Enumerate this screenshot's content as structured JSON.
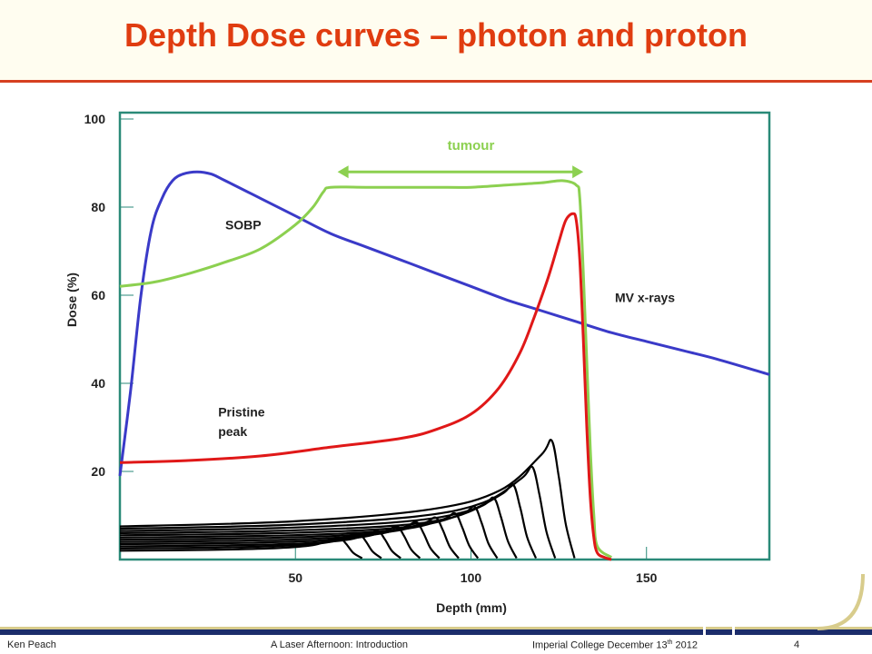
{
  "slide": {
    "title": "Depth Dose curves – photon and proton",
    "footer": {
      "author": "Ken Peach",
      "talk": "A Laser Afternoon: Introduction",
      "venue_prefix": "Imperial College December 13",
      "venue_sup": "th",
      "venue_suffix": " 2012",
      "page": "4"
    }
  },
  "colors": {
    "title": "#e03c10",
    "title_rule": "#d64020",
    "axes": "#2a8a78",
    "mv_xrays": "#3a3ac8",
    "sobp": "#8cd050",
    "pristine_peak": "#e01818",
    "pristine_family": "#000000",
    "tumour_arrow": "#8cd050",
    "footer_bar": "#1c2d6b",
    "footer_gold": "#d8cc8c"
  },
  "chart_data": {
    "type": "line",
    "xlabel": "Depth (mm)",
    "ylabel": "Dose (%)",
    "xlim": [
      0,
      185
    ],
    "ylim": [
      0,
      100
    ],
    "x_ticks": [
      50,
      100,
      150
    ],
    "y_ticks": [
      20,
      40,
      60,
      80,
      100
    ],
    "grid": false,
    "annotations": [
      {
        "text": "tumour",
        "x": 100,
        "y": 93
      },
      {
        "text": "SOBP",
        "x": 30,
        "y": 75
      },
      {
        "text": "MV x-rays",
        "x": 141,
        "y": 58.5
      },
      {
        "text": "Pristine",
        "x": 28,
        "y": 32.5
      },
      {
        "text": "peak",
        "x": 28,
        "y": 28
      }
    ],
    "tumour_range": {
      "x_start": 62,
      "x_end": 132,
      "y": 88
    },
    "series": [
      {
        "name": "MV x-rays",
        "points": [
          [
            0,
            19
          ],
          [
            3,
            38
          ],
          [
            6,
            60
          ],
          [
            9,
            75
          ],
          [
            12,
            82
          ],
          [
            15,
            86
          ],
          [
            18,
            87.5
          ],
          [
            22,
            88
          ],
          [
            26,
            87.5
          ],
          [
            30,
            86
          ],
          [
            40,
            82
          ],
          [
            50,
            78
          ],
          [
            60,
            74
          ],
          [
            70,
            71
          ],
          [
            80,
            68
          ],
          [
            90,
            65
          ],
          [
            100,
            62
          ],
          [
            110,
            59
          ],
          [
            120,
            56.5
          ],
          [
            130,
            54
          ],
          [
            140,
            51.5
          ],
          [
            150,
            49.5
          ],
          [
            160,
            47.5
          ],
          [
            170,
            45.5
          ],
          [
            185,
            42
          ]
        ]
      },
      {
        "name": "SOBP",
        "points": [
          [
            0,
            62
          ],
          [
            10,
            63
          ],
          [
            20,
            65
          ],
          [
            30,
            67.5
          ],
          [
            40,
            70.5
          ],
          [
            50,
            76
          ],
          [
            55,
            80
          ],
          [
            58,
            83.5
          ],
          [
            60,
            84.5
          ],
          [
            70,
            84.5
          ],
          [
            80,
            84.5
          ],
          [
            90,
            84.5
          ],
          [
            100,
            84.5
          ],
          [
            110,
            85
          ],
          [
            120,
            85.5
          ],
          [
            126,
            86
          ],
          [
            130,
            85
          ],
          [
            131,
            82
          ],
          [
            132,
            65
          ],
          [
            133,
            45
          ],
          [
            134,
            25
          ],
          [
            135,
            10
          ],
          [
            136,
            3
          ],
          [
            140,
            0.5
          ]
        ]
      },
      {
        "name": "Pristine peak",
        "points": [
          [
            0,
            22
          ],
          [
            20,
            22.5
          ],
          [
            40,
            23.5
          ],
          [
            60,
            25.5
          ],
          [
            80,
            27.5
          ],
          [
            90,
            29.5
          ],
          [
            100,
            33
          ],
          [
            108,
            39
          ],
          [
            114,
            47
          ],
          [
            118,
            55
          ],
          [
            122,
            64
          ],
          [
            125,
            72
          ],
          [
            127,
            77
          ],
          [
            129,
            78.5
          ],
          [
            130,
            77
          ],
          [
            131,
            68
          ],
          [
            132,
            50
          ],
          [
            133,
            30
          ],
          [
            134,
            14
          ],
          [
            135,
            5
          ],
          [
            136,
            1.5
          ],
          [
            138,
            0.5
          ],
          [
            140,
            0
          ]
        ]
      }
    ],
    "pristine_family": {
      "peak_depth": [
        62.5,
        68,
        73.5,
        79,
        84.5,
        90,
        95.5,
        101,
        106.5,
        112,
        117.5,
        123
      ],
      "peak_dose": [
        5,
        6,
        6.5,
        7.5,
        8.5,
        9.5,
        10.5,
        12,
        14,
        17,
        21,
        27
      ],
      "entrance_dose": [
        2,
        2.5,
        3,
        3.5,
        4,
        4.5,
        5,
        5.5,
        6,
        6.5,
        7,
        7.5
      ]
    }
  }
}
